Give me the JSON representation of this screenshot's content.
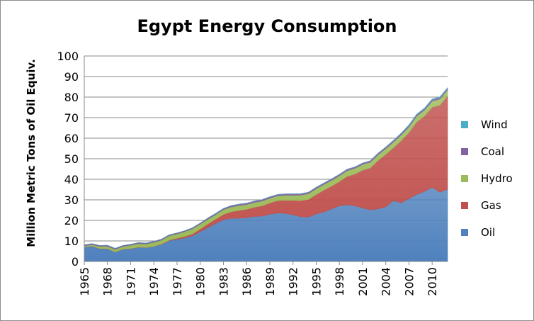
{
  "chart_data": {
    "type": "area",
    "stacked": true,
    "title": "Egypt Energy Consumption",
    "xlabel": "",
    "ylabel": "Million Metric Tons of Oil Equiv.",
    "ylim": [
      0,
      100
    ],
    "yticks": [
      0,
      10,
      20,
      30,
      40,
      50,
      60,
      70,
      80,
      90,
      100
    ],
    "x": [
      1965,
      1966,
      1967,
      1968,
      1969,
      1970,
      1971,
      1972,
      1973,
      1974,
      1975,
      1976,
      1977,
      1978,
      1979,
      1980,
      1981,
      1982,
      1983,
      1984,
      1985,
      1986,
      1987,
      1988,
      1989,
      1990,
      1991,
      1992,
      1993,
      1994,
      1995,
      1996,
      1997,
      1998,
      1999,
      2000,
      2001,
      2002,
      2003,
      2004,
      2005,
      2006,
      2007,
      2008,
      2009,
      2010,
      2011,
      2012
    ],
    "xtick_labels": [
      "1965",
      "1968",
      "1971",
      "1974",
      "1977",
      "1980",
      "1983",
      "1986",
      "1989",
      "1992",
      "1995",
      "1998",
      "2001",
      "2004",
      "2007",
      "2010"
    ],
    "series": [
      {
        "name": "Oil",
        "color": "#4f81bd",
        "values": [
          7.0,
          7.4,
          6.2,
          6.2,
          4.6,
          5.9,
          6.2,
          6.9,
          6.7,
          7.3,
          8.3,
          10.1,
          10.8,
          11.4,
          12.5,
          14.5,
          16.5,
          18.5,
          20.3,
          21.0,
          21.0,
          21.3,
          21.9,
          22.1,
          23.0,
          23.6,
          23.4,
          22.7,
          21.8,
          21.6,
          23.1,
          24.1,
          25.6,
          27.1,
          27.6,
          27.1,
          26.1,
          25.1,
          25.6,
          26.6,
          29.6,
          28.6,
          30.6,
          32.6,
          34.1,
          36.1,
          33.7,
          35.2
        ]
      },
      {
        "name": "Gas",
        "color": "#c0504d",
        "values": [
          0.1,
          0.1,
          0.1,
          0.1,
          0.1,
          0.1,
          0.1,
          0.1,
          0.1,
          0.1,
          0.2,
          0.3,
          0.5,
          0.8,
          0.9,
          1.3,
          1.8,
          2.1,
          2.6,
          3.2,
          3.8,
          4.1,
          4.5,
          5.0,
          5.5,
          6.0,
          6.4,
          7.0,
          7.8,
          8.6,
          9.5,
          10.6,
          11.1,
          11.8,
          13.8,
          15.4,
          18.3,
          20.4,
          23.5,
          25.5,
          25.7,
          30.2,
          32.1,
          35.2,
          36.6,
          38.9,
          42.3,
          45.3
        ]
      },
      {
        "name": "Hydro",
        "color": "#9bbb59",
        "values": [
          0.5,
          0.7,
          1.0,
          1.1,
          1.2,
          1.3,
          1.6,
          1.7,
          1.7,
          1.9,
          1.9,
          2.1,
          2.1,
          2.3,
          2.5,
          2.4,
          2.3,
          2.2,
          2.3,
          2.3,
          2.4,
          2.3,
          2.3,
          2.3,
          2.3,
          2.3,
          2.4,
          2.5,
          2.7,
          2.8,
          2.8,
          2.8,
          2.8,
          2.8,
          2.8,
          2.8,
          2.8,
          2.8,
          2.8,
          2.8,
          2.8,
          2.8,
          2.8,
          2.9,
          2.9,
          3.0,
          3.0,
          3.0
        ]
      },
      {
        "name": "Coal",
        "color": "#8064a2",
        "values": [
          0.5,
          0.5,
          0.5,
          0.5,
          0.5,
          0.5,
          0.5,
          0.5,
          0.5,
          0.5,
          0.5,
          0.5,
          0.5,
          0.5,
          0.5,
          0.5,
          0.6,
          0.6,
          0.6,
          0.7,
          0.7,
          0.7,
          0.7,
          0.7,
          0.7,
          0.7,
          0.7,
          0.7,
          0.7,
          0.7,
          0.7,
          0.7,
          0.7,
          0.7,
          0.7,
          0.7,
          0.7,
          0.7,
          0.8,
          0.8,
          0.8,
          0.8,
          0.8,
          0.8,
          0.8,
          0.8,
          0.8,
          0.8
        ]
      },
      {
        "name": "Wind",
        "color": "#4bacc6",
        "values": [
          0,
          0,
          0,
          0,
          0,
          0,
          0,
          0,
          0,
          0,
          0,
          0,
          0,
          0,
          0,
          0,
          0,
          0,
          0,
          0,
          0,
          0,
          0,
          0,
          0,
          0,
          0,
          0,
          0,
          0,
          0,
          0,
          0,
          0,
          0,
          0,
          0,
          0,
          0,
          0,
          0.1,
          0.1,
          0.2,
          0.2,
          0.2,
          0.3,
          0.3,
          0.3
        ]
      }
    ],
    "legend": {
      "position": "right",
      "order": [
        "Wind",
        "Coal",
        "Hydro",
        "Gas",
        "Oil"
      ]
    },
    "grid": {
      "horizontal": true,
      "vertical": false
    }
  }
}
